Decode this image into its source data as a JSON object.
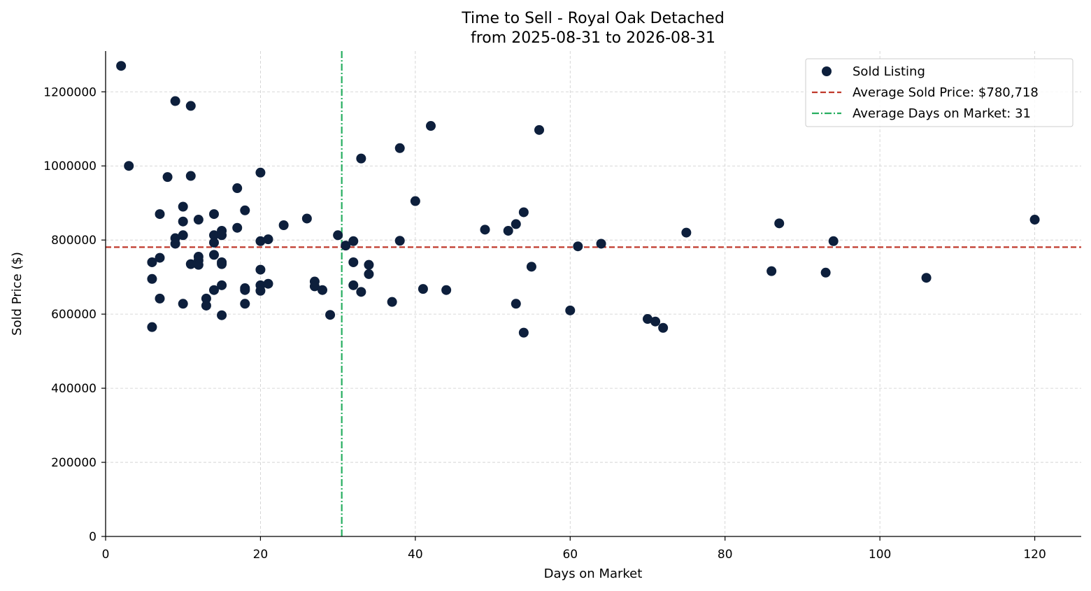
{
  "chart_data": {
    "type": "scatter",
    "title": "Time to Sell - Royal Oak Detached",
    "subtitle": "from 2025-08-31 to 2026-08-31",
    "xlabel": "Days on Market",
    "ylabel": "Sold Price ($)",
    "xlim": [
      0,
      126
    ],
    "ylim": [
      0,
      1310000
    ],
    "x_ticks": [
      0,
      20,
      40,
      60,
      80,
      100,
      120
    ],
    "y_ticks": [
      0,
      200000,
      400000,
      600000,
      800000,
      1000000,
      1200000
    ],
    "grid": true,
    "legend_position": "top-right",
    "colors": {
      "points": "#0d1f3c",
      "avg_price_line": "#c0392b",
      "avg_days_line": "#27ae60"
    },
    "legend": [
      {
        "label": "Sold Listing",
        "kind": "marker"
      },
      {
        "label": "Average Sold Price: $780,718",
        "kind": "dashed"
      },
      {
        "label": "Average Days on Market: 31",
        "kind": "dashdot"
      }
    ],
    "reference_lines": {
      "avg_sold_price": 780718,
      "avg_days_on_market": 30.5
    },
    "series": [
      {
        "name": "Sold Listing",
        "points": [
          [
            2,
            1270000
          ],
          [
            3,
            1000000
          ],
          [
            6,
            740000
          ],
          [
            6,
            695000
          ],
          [
            6,
            565000
          ],
          [
            7,
            870000
          ],
          [
            7,
            752000
          ],
          [
            7,
            642000
          ],
          [
            8,
            970000
          ],
          [
            9,
            1175000
          ],
          [
            9,
            805000
          ],
          [
            9,
            790000
          ],
          [
            10,
            890000
          ],
          [
            10,
            850000
          ],
          [
            10,
            813000
          ],
          [
            10,
            628000
          ],
          [
            11,
            1162000
          ],
          [
            11,
            973000
          ],
          [
            11,
            735000
          ],
          [
            12,
            855000
          ],
          [
            12,
            755000
          ],
          [
            12,
            745000
          ],
          [
            12,
            733000
          ],
          [
            13,
            642000
          ],
          [
            13,
            623000
          ],
          [
            14,
            870000
          ],
          [
            14,
            813000
          ],
          [
            14,
            793000
          ],
          [
            14,
            760000
          ],
          [
            14,
            665000
          ],
          [
            15,
            825000
          ],
          [
            15,
            813000
          ],
          [
            15,
            740000
          ],
          [
            15,
            735000
          ],
          [
            15,
            678000
          ],
          [
            15,
            597000
          ],
          [
            17,
            940000
          ],
          [
            17,
            833000
          ],
          [
            18,
            880000
          ],
          [
            18,
            670000
          ],
          [
            18,
            665000
          ],
          [
            18,
            628000
          ],
          [
            20,
            982000
          ],
          [
            20,
            797000
          ],
          [
            20,
            720000
          ],
          [
            20,
            678000
          ],
          [
            20,
            663000
          ],
          [
            21,
            802000
          ],
          [
            21,
            682000
          ],
          [
            23,
            840000
          ],
          [
            26,
            858000
          ],
          [
            27,
            688000
          ],
          [
            27,
            675000
          ],
          [
            28,
            665000
          ],
          [
            29,
            598000
          ],
          [
            30,
            813000
          ],
          [
            31,
            785000
          ],
          [
            32,
            797000
          ],
          [
            32,
            740000
          ],
          [
            32,
            678000
          ],
          [
            33,
            1020000
          ],
          [
            33,
            660000
          ],
          [
            34,
            733000
          ],
          [
            34,
            708000
          ],
          [
            37,
            633000
          ],
          [
            38,
            1048000
          ],
          [
            38,
            798000
          ],
          [
            40,
            905000
          ],
          [
            41,
            668000
          ],
          [
            42,
            1108000
          ],
          [
            44,
            665000
          ],
          [
            49,
            828000
          ],
          [
            52,
            825000
          ],
          [
            53,
            843000
          ],
          [
            53,
            628000
          ],
          [
            54,
            875000
          ],
          [
            54,
            550000
          ],
          [
            55,
            728000
          ],
          [
            56,
            1097000
          ],
          [
            60,
            610000
          ],
          [
            61,
            783000
          ],
          [
            64,
            790000
          ],
          [
            70,
            587000
          ],
          [
            71,
            580000
          ],
          [
            72,
            563000
          ],
          [
            75,
            820000
          ],
          [
            86,
            716000
          ],
          [
            87,
            845000
          ],
          [
            93,
            712000
          ],
          [
            94,
            797000
          ],
          [
            106,
            698000
          ],
          [
            120,
            855000
          ]
        ]
      }
    ]
  }
}
